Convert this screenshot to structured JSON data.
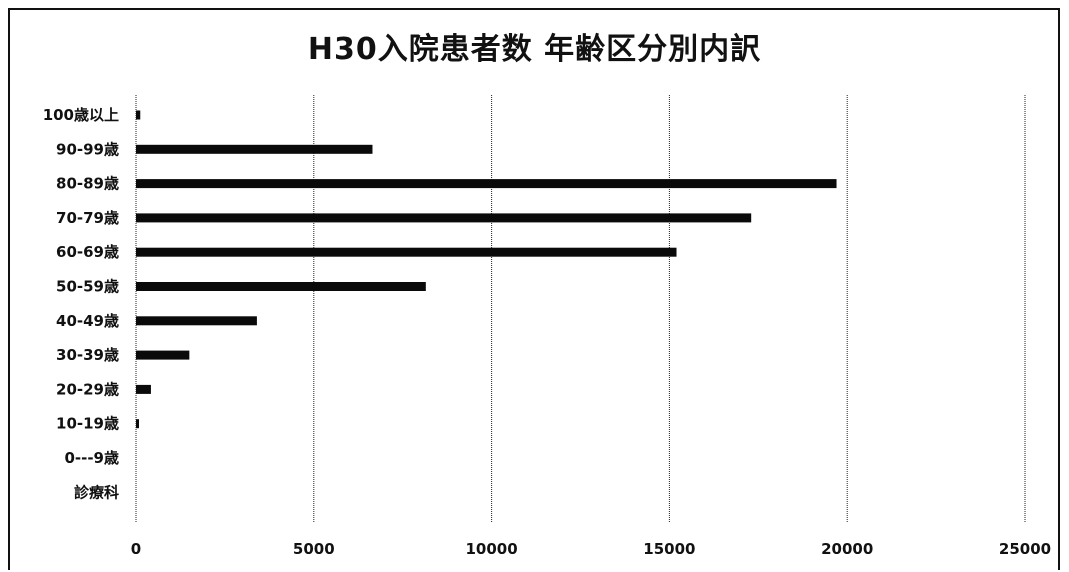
{
  "chart_data": {
    "type": "bar",
    "orientation": "horizontal",
    "title": "H30入院患者数 年齢区分別内訳",
    "categories": [
      "100歳以上",
      "90-99歳",
      "80-89歳",
      "70-79歳",
      "60-69歳",
      "50-59歳",
      "40-49歳",
      "30-39歳",
      "20-29歳",
      "10-19歳",
      "0---9歳",
      "診療科"
    ],
    "values": [
      120,
      6650,
      19700,
      17300,
      15200,
      8150,
      3400,
      1500,
      420,
      60,
      0,
      0
    ],
    "xlim": [
      0,
      25000
    ],
    "xticks": [
      "0",
      "5000",
      "10000",
      "15000",
      "20000",
      "25000"
    ],
    "grid": "vertical",
    "legend": "none",
    "bar_color": "#0a0a0a"
  }
}
